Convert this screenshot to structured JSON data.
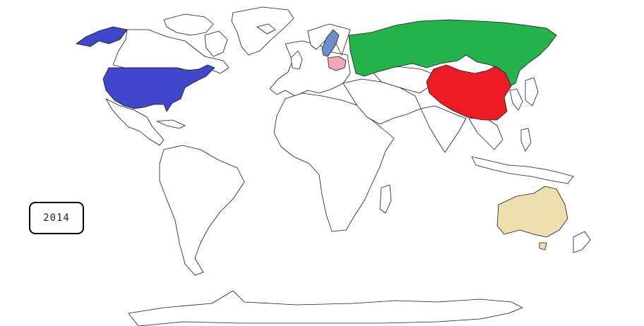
{
  "year_label": "2014",
  "colors": {
    "usa": "#4147cc",
    "alaska": "#4147cc",
    "russia": "#24b24b",
    "china": "#ec1c24",
    "australia": "#ede0ae",
    "sweden": "#6c8fc9",
    "poland": "#f4a7bb",
    "other": "#ffffff"
  },
  "highlighted_regions": [
    "usa",
    "alaska",
    "russia",
    "china",
    "australia",
    "sweden",
    "poland"
  ]
}
